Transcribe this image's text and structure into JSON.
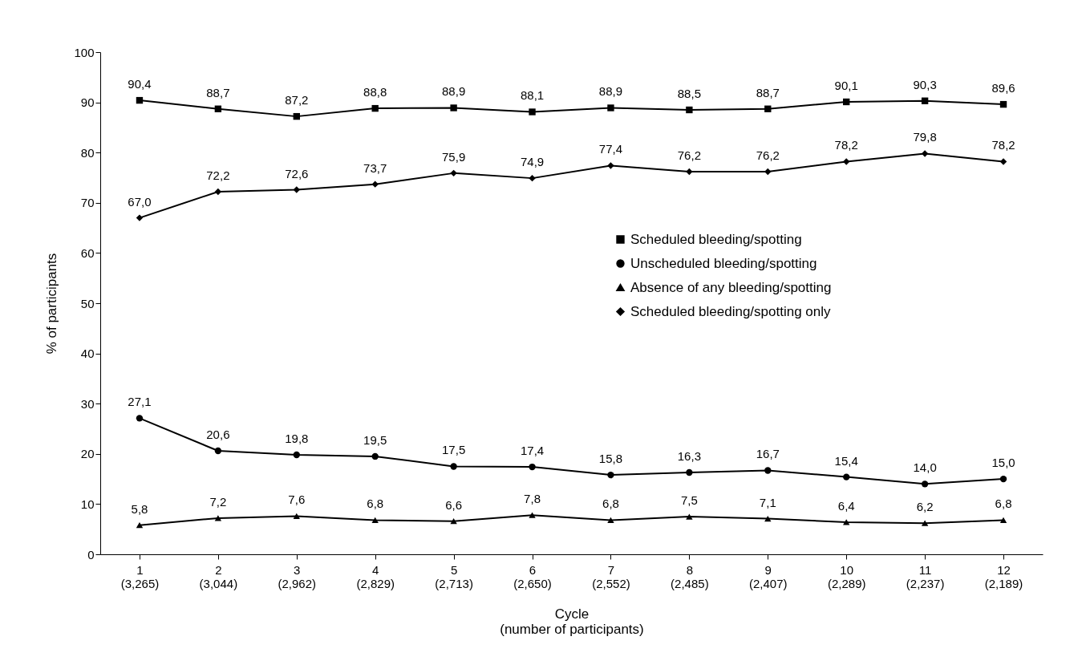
{
  "chart_data": {
    "type": "line",
    "xlabel": "Cycle\n(number of participants)",
    "ylabel": "% of participants",
    "categories": [
      "1\n(3,265)",
      "2\n(3,044)",
      "3\n(2,962)",
      "4\n(2,829)",
      "5\n(2,713)",
      "6\n(2,650)",
      "7\n(2,552)",
      "8\n(2,485)",
      "9\n(2,407)",
      "10\n(2,289)",
      "11\n(2,237)",
      "12\n(2,189)"
    ],
    "ylim": [
      0,
      100
    ],
    "yticks": [
      0,
      10,
      20,
      30,
      40,
      50,
      60,
      70,
      80,
      90,
      100
    ],
    "grid": false,
    "legend": "right",
    "series": [
      {
        "name": "Scheduled bleeding/spotting",
        "color": "#000000",
        "marker": "square",
        "values": [
          90.4,
          88.7,
          87.2,
          88.8,
          88.9,
          88.1,
          88.9,
          88.5,
          88.7,
          90.1,
          90.3,
          89.6
        ],
        "value_labels": [
          "90,4",
          "88,7",
          "87,2",
          "88,8",
          "88,9",
          "88,1",
          "88,9",
          "88,5",
          "88,7",
          "90,1",
          "90,3",
          "89,6"
        ]
      },
      {
        "name": "Unscheduled bleeding/spotting",
        "color": "#000000",
        "marker": "circle",
        "values": [
          27.1,
          20.6,
          19.8,
          19.5,
          17.5,
          17.4,
          15.8,
          16.3,
          16.7,
          15.4,
          14.0,
          15.0
        ],
        "value_labels": [
          "27,1",
          "20,6",
          "19,8",
          "19,5",
          "17,5",
          "17,4",
          "15,8",
          "16,3",
          "16,7",
          "15,4",
          "14,0",
          "15,0"
        ]
      },
      {
        "name": "Absence of any bleeding/spotting",
        "color": "#000000",
        "marker": "triangle",
        "values": [
          5.8,
          7.2,
          7.6,
          6.8,
          6.6,
          7.8,
          6.8,
          7.5,
          7.1,
          6.4,
          6.2,
          6.8
        ],
        "value_labels": [
          "5,8",
          "7,2",
          "7,6",
          "6,8",
          "6,6",
          "7,8",
          "6,8",
          "7,5",
          "7,1",
          "6,4",
          "6,2",
          "6,8"
        ]
      },
      {
        "name": "Scheduled bleeding/spotting only",
        "color": "#000000",
        "marker": "diamond",
        "values": [
          67.0,
          72.2,
          72.6,
          73.7,
          75.9,
          74.9,
          77.4,
          76.2,
          76.2,
          78.2,
          79.8,
          78.2
        ],
        "value_labels": [
          "67,0",
          "72,2",
          "72,6",
          "73,7",
          "75,9",
          "74,9",
          "77,4",
          "76,2",
          "76,2",
          "78,2",
          "79,8",
          "78,2"
        ]
      }
    ]
  }
}
